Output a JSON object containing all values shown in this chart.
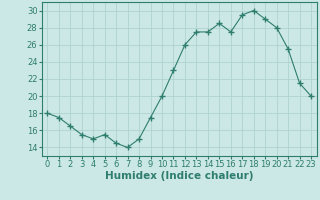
{
  "x": [
    0,
    1,
    2,
    3,
    4,
    5,
    6,
    7,
    8,
    9,
    10,
    11,
    12,
    13,
    14,
    15,
    16,
    17,
    18,
    19,
    20,
    21,
    22,
    23
  ],
  "y": [
    18,
    17.5,
    16.5,
    15.5,
    15,
    15.5,
    14.5,
    14,
    15,
    17.5,
    20,
    23,
    26,
    27.5,
    27.5,
    28.5,
    27.5,
    29.5,
    30,
    29,
    28,
    25.5,
    21.5,
    20
  ],
  "xlabel": "Humidex (Indice chaleur)",
  "ylim": [
    13,
    31
  ],
  "xlim": [
    -0.5,
    23.5
  ],
  "yticks": [
    14,
    16,
    18,
    20,
    22,
    24,
    26,
    28,
    30
  ],
  "xtick_labels": [
    "0",
    "1",
    "2",
    "3",
    "4",
    "5",
    "6",
    "7",
    "8",
    "9",
    "10",
    "11",
    "12",
    "13",
    "14",
    "15",
    "16",
    "17",
    "18",
    "19",
    "20",
    "21",
    "22",
    "23"
  ],
  "line_color": "#2e7d6e",
  "marker_color": "#2e7d6e",
  "bg_color": "#cce8e6",
  "grid_color": "#aacfcc",
  "label_fontsize": 7.5,
  "tick_fontsize": 6.0
}
